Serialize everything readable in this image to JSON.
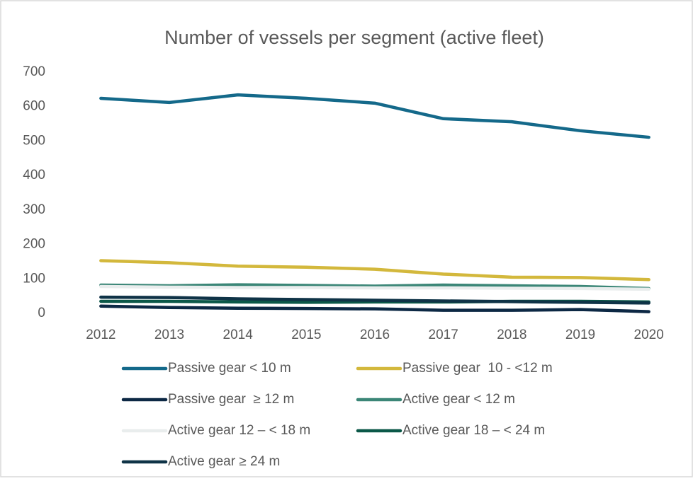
{
  "chart_data": {
    "type": "line",
    "title": "Number of vessels per segment (active fleet)",
    "categories": [
      "2012",
      "2013",
      "2014",
      "2015",
      "2016",
      "2017",
      "2018",
      "2019",
      "2020"
    ],
    "series": [
      {
        "name": "Passive gear < 10 m",
        "color": "#14698a",
        "values": [
          624,
          612,
          634,
          624,
          610,
          565,
          556,
          530,
          511
        ]
      },
      {
        "name": "Passive gear  10 - <12 m",
        "color": "#d3b83c",
        "values": [
          153,
          147,
          137,
          134,
          128,
          114,
          105,
          104,
          98
        ]
      },
      {
        "name": "Passive gear  ≥ 12 m",
        "color": "#0c2844",
        "values": [
          21,
          17,
          15,
          14,
          13,
          9,
          9,
          11,
          5
        ]
      },
      {
        "name": "Active gear < 12 m",
        "color": "#3b8677",
        "values": [
          82,
          80,
          83,
          81,
          79,
          82,
          80,
          78,
          72
        ]
      },
      {
        "name": "Active gear 12 – < 18 m",
        "color": "#e9eded",
        "values": [
          78,
          76,
          75,
          75,
          74,
          74,
          73,
          72,
          70
        ]
      },
      {
        "name": "Active gear 18 – < 24 m",
        "color": "#0b5848",
        "values": [
          35,
          35,
          33,
          32,
          33,
          33,
          35,
          35,
          33
        ]
      },
      {
        "name": "Active gear ≥ 24 m",
        "color": "#0f3347",
        "values": [
          47,
          46,
          42,
          40,
          38,
          36,
          34,
          32,
          30
        ]
      }
    ],
    "ylim": [
      0,
      700
    ],
    "yticks": [
      0,
      100,
      200,
      300,
      400,
      500,
      600,
      700
    ],
    "grid": false
  }
}
